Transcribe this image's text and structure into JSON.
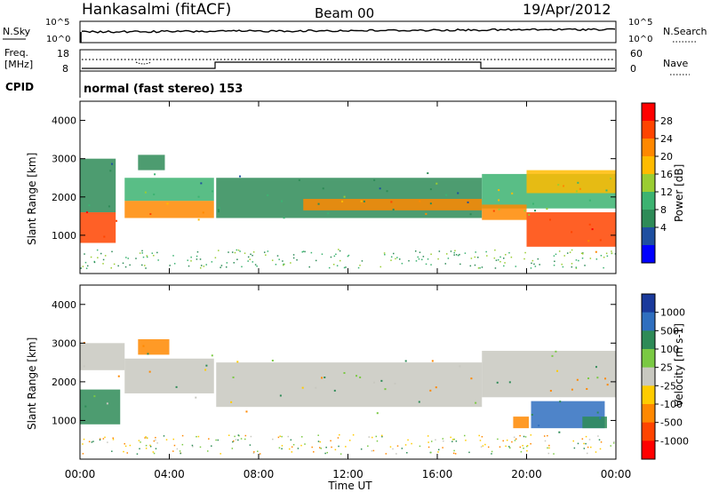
{
  "header": {
    "station": "Hankasalmi (fitACF)",
    "beam": "Beam 00",
    "date": "19/Apr/2012"
  },
  "noise_panel": {
    "left_label": "N.Sky",
    "right_label": "N.Search",
    "top_tick": "10^5",
    "bottom_tick": "10^0"
  },
  "freq_panel": {
    "left_label_1": "Freq.",
    "left_label_2": "[MHz]",
    "left_ticks": [
      "18",
      "8"
    ],
    "right_label": "Nave",
    "right_ticks": [
      "60",
      "0"
    ]
  },
  "cpid": {
    "label": "CPID",
    "text": "normal (fast stereo) 153"
  },
  "axes": {
    "ylabel": "Slant Range [km]",
    "y_ticks": [
      "4000",
      "3000",
      "2000",
      "1000"
    ],
    "x_ticks": [
      "00:00",
      "04:00",
      "08:00",
      "12:00",
      "16:00",
      "20:00",
      "00:00"
    ],
    "xlabel": "Time UT"
  },
  "power_colorbar": {
    "label": "Power [dB]",
    "ticks": [
      "28",
      "24",
      "20",
      "16",
      "12",
      "8",
      "4"
    ],
    "colors": [
      "#ff0000",
      "#ff4400",
      "#ff8800",
      "#ffbb00",
      "#9acd32",
      "#3cb371",
      "#2e8b57",
      "#1e4fa0",
      "#0000ff"
    ]
  },
  "velocity_colorbar": {
    "label": "Velocity [m s-1]",
    "ticks": [
      "1000",
      "500",
      "100",
      "25",
      "-25",
      "-100",
      "-500",
      "-1000"
    ],
    "colors": [
      "#1a3a9c",
      "#2f6fbf",
      "#2e8b57",
      "#7ac943",
      "#c8c8c0",
      "#ffcc00",
      "#ff8800",
      "#ff4400",
      "#ff0000"
    ]
  },
  "chart_data": [
    {
      "type": "heatmap",
      "title": "",
      "xlabel": "",
      "ylabel": "Slant Range [km]",
      "xlim": [
        0,
        24
      ],
      "ylim": [
        0,
        4500
      ],
      "colorbar": "Power [dB]",
      "regions": [
        {
          "t0": 0.0,
          "t1": 1.6,
          "r0": 800,
          "r1": 1600,
          "level": 26
        },
        {
          "t0": 0.0,
          "t1": 1.6,
          "r0": 1600,
          "r1": 3000,
          "level": 8
        },
        {
          "t0": 2.0,
          "t1": 6.0,
          "r0": 1450,
          "r1": 1900,
          "level": 22
        },
        {
          "t0": 2.0,
          "t1": 6.0,
          "r0": 1900,
          "r1": 2500,
          "level": 10
        },
        {
          "t0": 2.6,
          "t1": 3.8,
          "r0": 2700,
          "r1": 3100,
          "level": 8
        },
        {
          "t0": 6.1,
          "t1": 18.0,
          "r0": 1450,
          "r1": 2500,
          "level": 9
        },
        {
          "t0": 10.0,
          "t1": 18.0,
          "r0": 1650,
          "r1": 1950,
          "level": 21
        },
        {
          "t0": 18.0,
          "t1": 24.0,
          "r0": 1700,
          "r1": 2600,
          "level": 12
        },
        {
          "t0": 18.0,
          "t1": 20.0,
          "r0": 1400,
          "r1": 1800,
          "level": 22
        },
        {
          "t0": 20.0,
          "t1": 24.0,
          "r0": 700,
          "r1": 1600,
          "level": 27
        },
        {
          "t0": 20.0,
          "t1": 24.0,
          "r0": 2100,
          "r1": 2700,
          "level": 17
        }
      ]
    },
    {
      "type": "heatmap",
      "title": "",
      "xlabel": "Time UT",
      "ylabel": "Slant Range [km]",
      "xlim": [
        0,
        24
      ],
      "ylim": [
        0,
        4500
      ],
      "colorbar": "Velocity [m s-1]",
      "regions": [
        {
          "t0": 0.0,
          "t1": 1.8,
          "r0": 900,
          "r1": 1800,
          "velocity": 100
        },
        {
          "t0": 0.0,
          "t1": 2.0,
          "r0": 2300,
          "r1": 3000,
          "velocity": 0
        },
        {
          "t0": 2.0,
          "t1": 6.0,
          "r0": 1700,
          "r1": 2600,
          "velocity": 0
        },
        {
          "t0": 2.6,
          "t1": 4.0,
          "r0": 2700,
          "r1": 3100,
          "velocity": -300
        },
        {
          "t0": 6.1,
          "t1": 18.0,
          "r0": 1350,
          "r1": 2500,
          "velocity": 0
        },
        {
          "t0": 18.0,
          "t1": 24.0,
          "r0": 1600,
          "r1": 2800,
          "velocity": 0
        },
        {
          "t0": 19.4,
          "t1": 20.1,
          "r0": 800,
          "r1": 1100,
          "velocity": -300
        },
        {
          "t0": 20.2,
          "t1": 23.5,
          "r0": 800,
          "r1": 1500,
          "velocity": 400
        },
        {
          "t0": 22.5,
          "t1": 23.6,
          "r0": 800,
          "r1": 1100,
          "velocity": 100
        }
      ]
    }
  ]
}
